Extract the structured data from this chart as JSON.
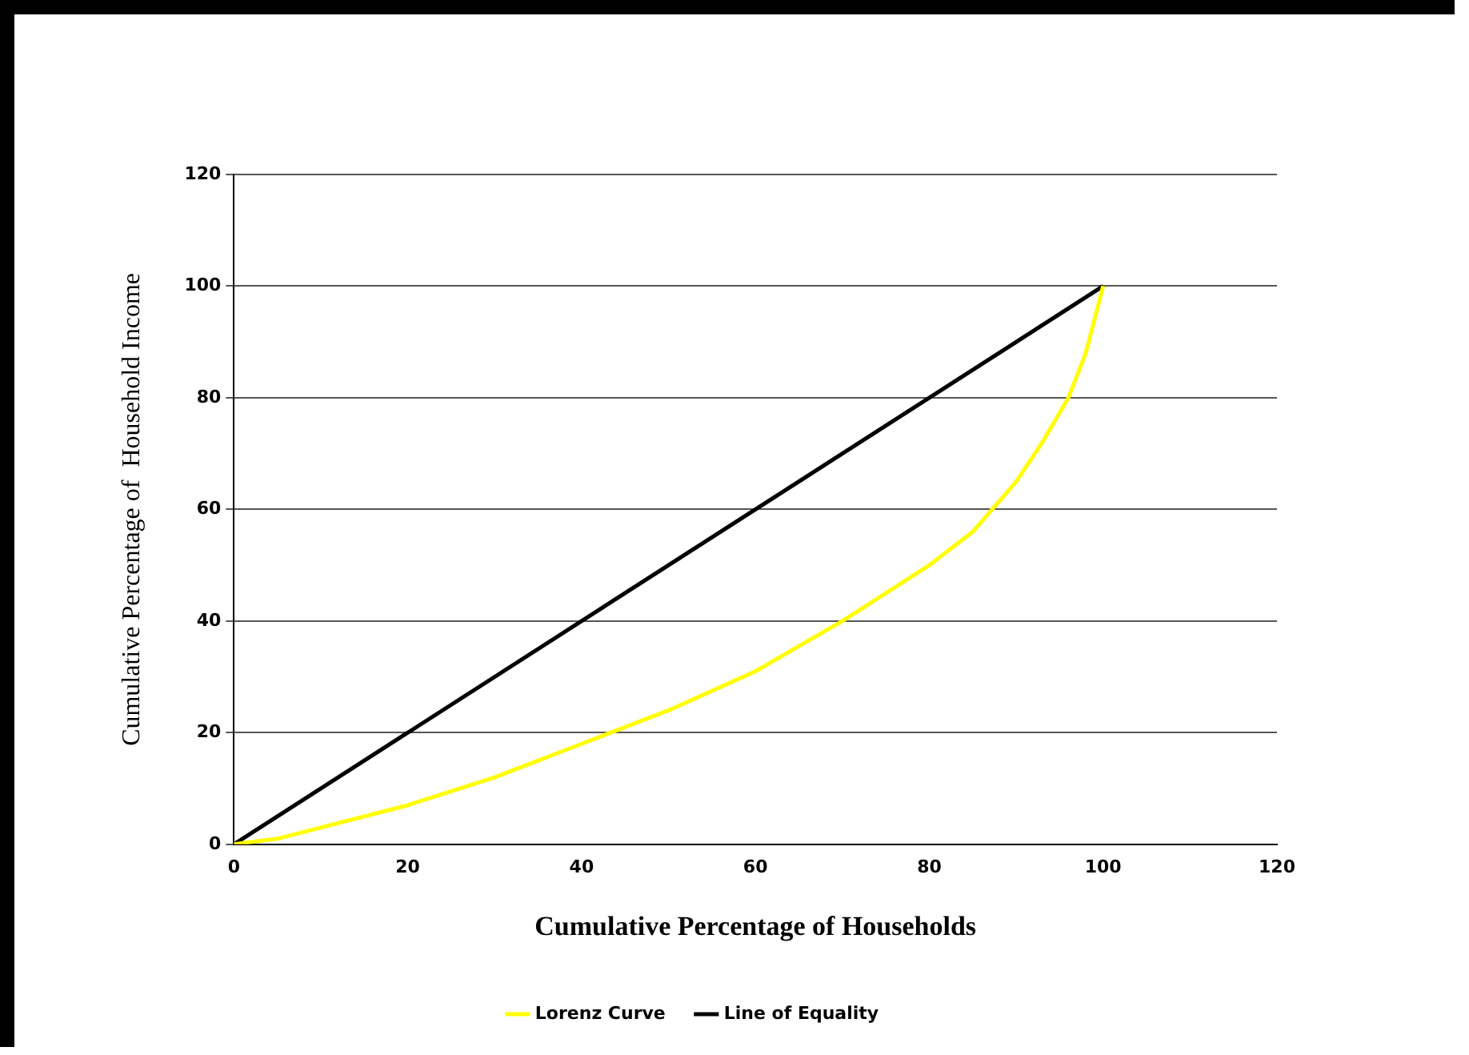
{
  "chart_data": {
    "type": "line",
    "xlabel": "Cumulative Percentage of Households",
    "ylabel": "Cumulative Percentage of  Household Income",
    "xlim": [
      0,
      120
    ],
    "xticks": [
      0,
      20,
      40,
      60,
      80,
      100,
      120
    ],
    "ylim": [
      0,
      120
    ],
    "yticks": [
      0,
      20,
      40,
      60,
      80,
      100,
      120
    ],
    "grid": "y",
    "legend": "bottom",
    "marker": "none",
    "line_style": "solid",
    "series": [
      {
        "name": "Lorenz Curve",
        "color": "#ffff00",
        "x": [
          0,
          5,
          10,
          20,
          30,
          40,
          50,
          60,
          70,
          80,
          85,
          90,
          93,
          96,
          98,
          100
        ],
        "values": [
          0,
          1,
          3,
          7,
          12,
          18,
          24,
          31,
          40,
          50,
          56,
          65,
          72,
          80,
          88,
          100
        ]
      },
      {
        "name": "Line of Equality",
        "color": "#000000",
        "x": [
          0,
          100
        ],
        "values": [
          0,
          100
        ]
      }
    ]
  }
}
